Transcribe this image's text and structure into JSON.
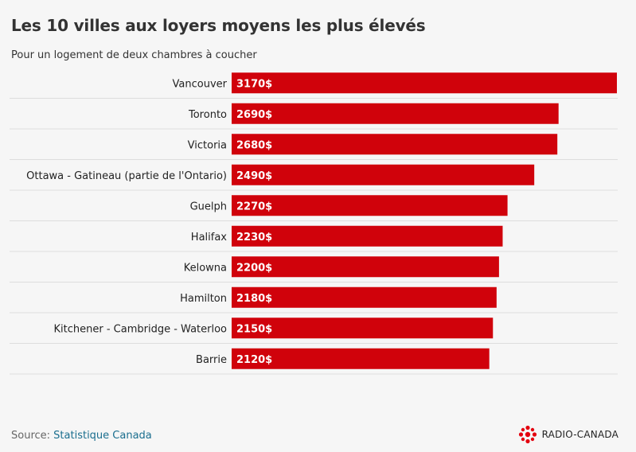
{
  "title": "Les 10 villes aux loyers moyens les plus élevés",
  "subtitle": "Pour un logement de deux chambres à coucher",
  "source_label": "Source: ",
  "source_name": "Statistique Canada",
  "brand": "RADIO-CANADA",
  "colors": {
    "bar": "#d0020b",
    "grid": "#dddddd",
    "label": "#222222",
    "bar_text": "#ffffff",
    "background": "#f6f6f6"
  },
  "chart_data": {
    "type": "bar",
    "orientation": "horizontal",
    "categories": [
      "Vancouver",
      "Toronto",
      "Victoria",
      "Ottawa - Gatineau (partie de l'Ontario)",
      "Guelph",
      "Halifax",
      "Kelowna",
      "Hamilton",
      "Kitchener - Cambridge - Waterloo",
      "Barrie"
    ],
    "values": [
      3170,
      2690,
      2680,
      2490,
      2270,
      2230,
      2200,
      2180,
      2150,
      2120
    ],
    "value_labels": [
      "3170$",
      "2690$",
      "2680$",
      "2490$",
      "2270$",
      "2230$",
      "2200$",
      "2180$",
      "2150$",
      "2120$"
    ],
    "xlim": [
      0,
      3170
    ],
    "title": "Les 10 villes aux loyers moyens les plus élevés",
    "xlabel": "",
    "ylabel": "",
    "grid": true,
    "legend": "none"
  }
}
